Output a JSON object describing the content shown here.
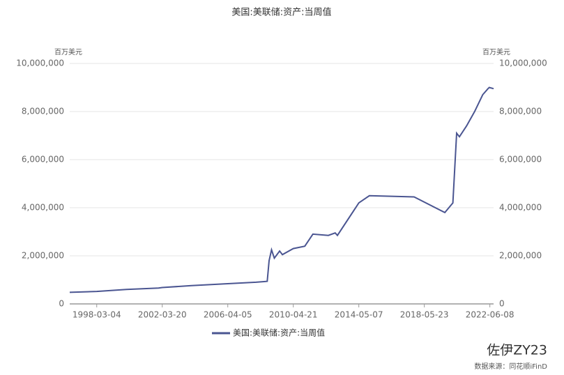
{
  "chart_data": {
    "type": "line",
    "title": "美国:美联储:资产:当周值",
    "y_unit": "百万美元",
    "y2_unit": "百万美元",
    "source": "数据来源：同花顺iFinD",
    "watermark": "佐伊ZY23",
    "x": [
      "1996-07-03",
      "1998-03-04",
      "2000-01-05",
      "2001-12-26",
      "2002-03-20",
      "2004-01-07",
      "2006-04-05",
      "2008-01-02",
      "2008-09-10",
      "2008-10-22",
      "2008-12-17",
      "2009-02-18",
      "2009-06-17",
      "2009-08-19",
      "2010-04-21",
      "2011-01-05",
      "2011-07-06",
      "2012-06-20",
      "2012-11-21",
      "2013-01-09",
      "2014-05-07",
      "2014-12-31",
      "2017-10-04",
      "2019-08-28",
      "2020-02-26",
      "2020-05-20",
      "2020-07-22",
      "2020-12-30",
      "2021-06-30",
      "2021-12-29",
      "2022-04-27",
      "2022-05-25",
      "2022-08-31"
    ],
    "series": [
      {
        "name": "美国:美联储:资产:当周值",
        "color": "#4a5591",
        "values": [
          480000,
          520000,
          600000,
          660000,
          680000,
          760000,
          840000,
          900000,
          940000,
          1800000,
          2250000,
          1900000,
          2200000,
          2050000,
          2300000,
          2400000,
          2900000,
          2850000,
          2950000,
          2850000,
          4200000,
          4500000,
          4450000,
          3800000,
          4200000,
          7100000,
          6950000,
          7400000,
          8000000,
          8700000,
          8950000,
          9000000,
          8950000
        ]
      }
    ],
    "xlim": [
      "1996-07-03",
      "2022-08-31"
    ],
    "xticks": [
      "1998-03-04",
      "2002-03-20",
      "2006-04-05",
      "2010-04-21",
      "2014-05-07",
      "2018-05-23",
      "2022-06-08"
    ],
    "ylim": [
      0,
      10000000
    ],
    "yticks": [
      0,
      {
        "value": 2000000,
        "label": "2,000,000"
      },
      {
        "value": 4000000,
        "label": "4,000,000"
      },
      {
        "value": 6000000,
        "label": "6,000,000"
      },
      {
        "value": 8000000,
        "label": "8,000,000"
      },
      {
        "value": 10000000,
        "label": "10,000,000"
      }
    ],
    "y2lim": [
      0,
      10000000
    ],
    "y2ticks": [
      0,
      {
        "value": 2000000,
        "label": "2,000,000"
      },
      {
        "value": 4000000,
        "label": "4,000,000"
      },
      {
        "value": 6000000,
        "label": "6,000,000"
      },
      {
        "value": 8000000,
        "label": "8,000,000"
      },
      {
        "value": 10000000,
        "label": "10,000,000"
      }
    ],
    "grid": true,
    "legend": "bottom"
  }
}
